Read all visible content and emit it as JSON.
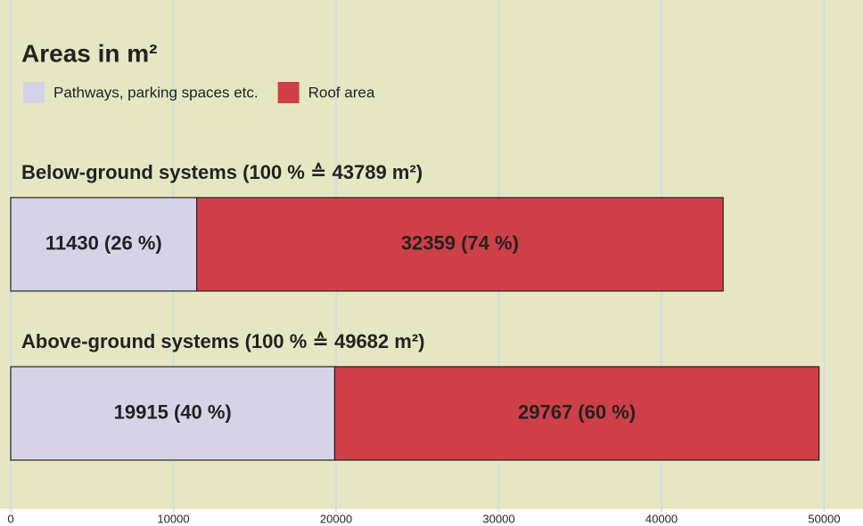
{
  "chart_data": {
    "type": "bar",
    "orientation": "horizontal",
    "stacked": true,
    "title": "Areas in m²",
    "categories": [
      "Below-ground systems (100 % ≙ 43789 m²)",
      "Above-ground systems (100 % ≙ 49682 m²)"
    ],
    "series": [
      {
        "name": "Pathways, parking spaces etc.",
        "color": "#d6d2e8",
        "values": [
          11430,
          19915
        ],
        "value_labels": [
          "11430 (26 %)",
          "19915 (40 %)"
        ]
      },
      {
        "name": "Roof area",
        "color": "#cf3f47",
        "values": [
          32359,
          29767
        ],
        "value_labels": [
          "32359 (74 %)",
          "29767 (60 %)"
        ]
      }
    ],
    "xlim": [
      0,
      52000
    ],
    "xticks": [
      0,
      10000,
      20000,
      30000,
      40000,
      50000
    ],
    "grid": true
  }
}
